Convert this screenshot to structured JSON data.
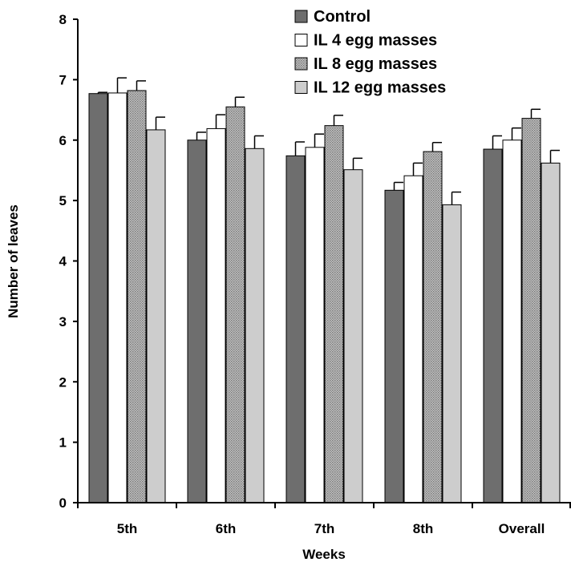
{
  "chart_data": {
    "type": "bar",
    "xlabel": "Weeks",
    "ylabel": "Number of leaves",
    "ylim": [
      0,
      8
    ],
    "yticks": [
      0,
      1,
      2,
      3,
      4,
      5,
      6,
      7,
      8
    ],
    "categories": [
      "5th",
      "6th",
      "7th",
      "8th",
      "Overall"
    ],
    "legend_position": "top-right",
    "grid": false,
    "series": [
      {
        "name": "Control",
        "color": "#6e6e6e",
        "pattern": "solid",
        "values": [
          6.77,
          6.0,
          5.74,
          5.17,
          5.85
        ],
        "errors": [
          0.02,
          0.13,
          0.23,
          0.13,
          0.22
        ]
      },
      {
        "name": "IL 4 egg masses",
        "color": "#ffffff",
        "pattern": "solid",
        "values": [
          6.78,
          6.19,
          5.88,
          5.41,
          6.0
        ],
        "errors": [
          0.25,
          0.23,
          0.22,
          0.21,
          0.2
        ]
      },
      {
        "name": "IL 8 egg masses",
        "color": "#a8a8a8",
        "pattern": "dotted",
        "values": [
          6.82,
          6.55,
          6.24,
          5.81,
          6.36
        ],
        "errors": [
          0.16,
          0.16,
          0.17,
          0.15,
          0.15
        ]
      },
      {
        "name": "IL 12 egg masses",
        "color": "#cdcdcd",
        "pattern": "solid",
        "values": [
          6.17,
          5.86,
          5.51,
          4.93,
          5.62
        ],
        "errors": [
          0.21,
          0.21,
          0.19,
          0.21,
          0.21
        ]
      }
    ]
  }
}
